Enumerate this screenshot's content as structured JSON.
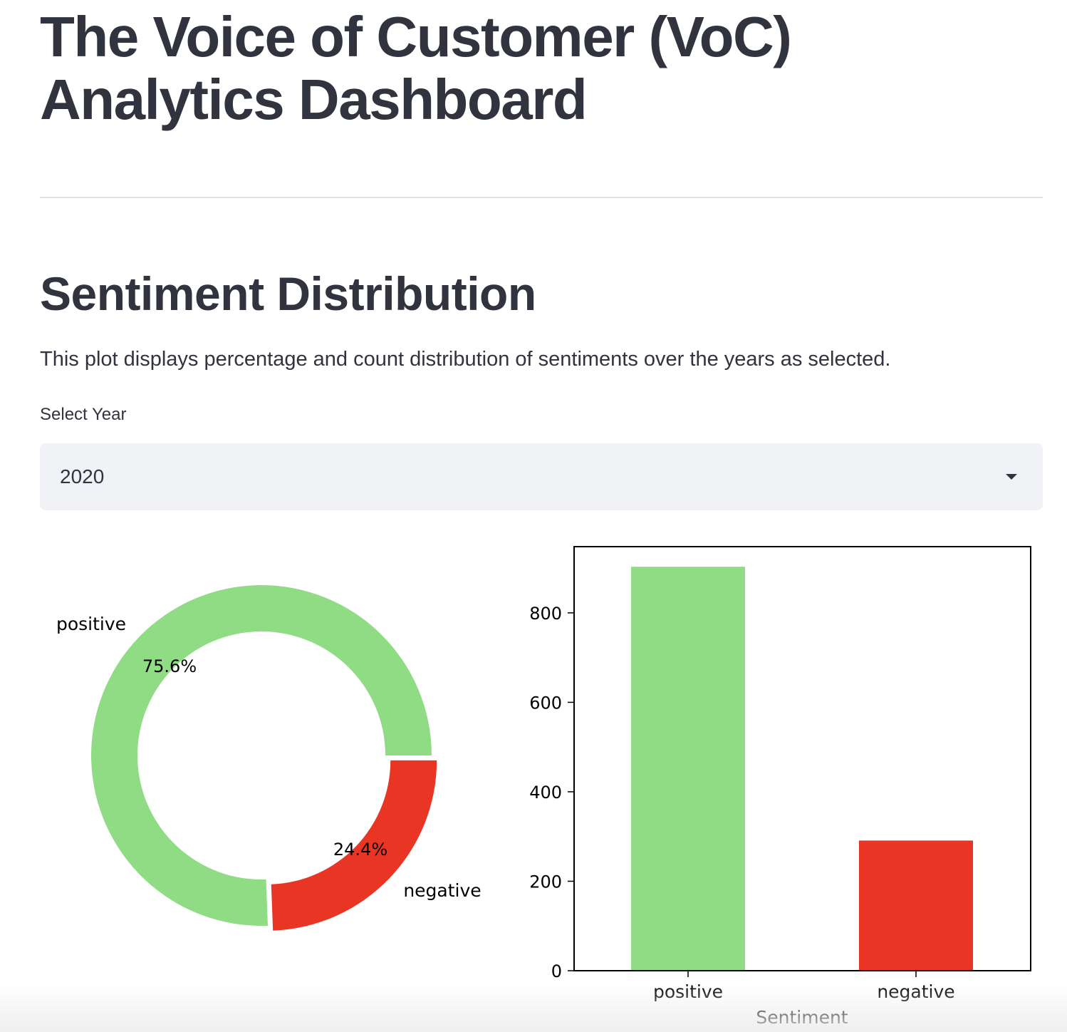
{
  "page": {
    "title": "The Voice of Customer (VoC) Analytics Dashboard"
  },
  "section": {
    "title": "Sentiment Distribution",
    "description": "This plot displays percentage and count distribution of sentiments over the years as selected."
  },
  "year_select": {
    "label": "Select Year",
    "value": "2020"
  },
  "colors": {
    "positive": "#90dc84",
    "negative": "#e83524",
    "text": "#31333f"
  },
  "chart_data": [
    {
      "type": "pie",
      "variant": "donut",
      "labels": [
        "positive",
        "negative"
      ],
      "values": [
        75.6,
        24.4
      ],
      "value_labels": [
        "75.6%",
        "24.4%"
      ],
      "exploded": [
        "negative"
      ]
    },
    {
      "type": "bar",
      "categories": [
        "positive",
        "negative"
      ],
      "values": [
        903,
        291
      ],
      "xlabel": "Sentiment",
      "ylabel": "",
      "yticks": [
        0,
        200,
        400,
        600,
        800
      ],
      "ylim": [
        0,
        948
      ],
      "grid": false,
      "title": ""
    }
  ]
}
